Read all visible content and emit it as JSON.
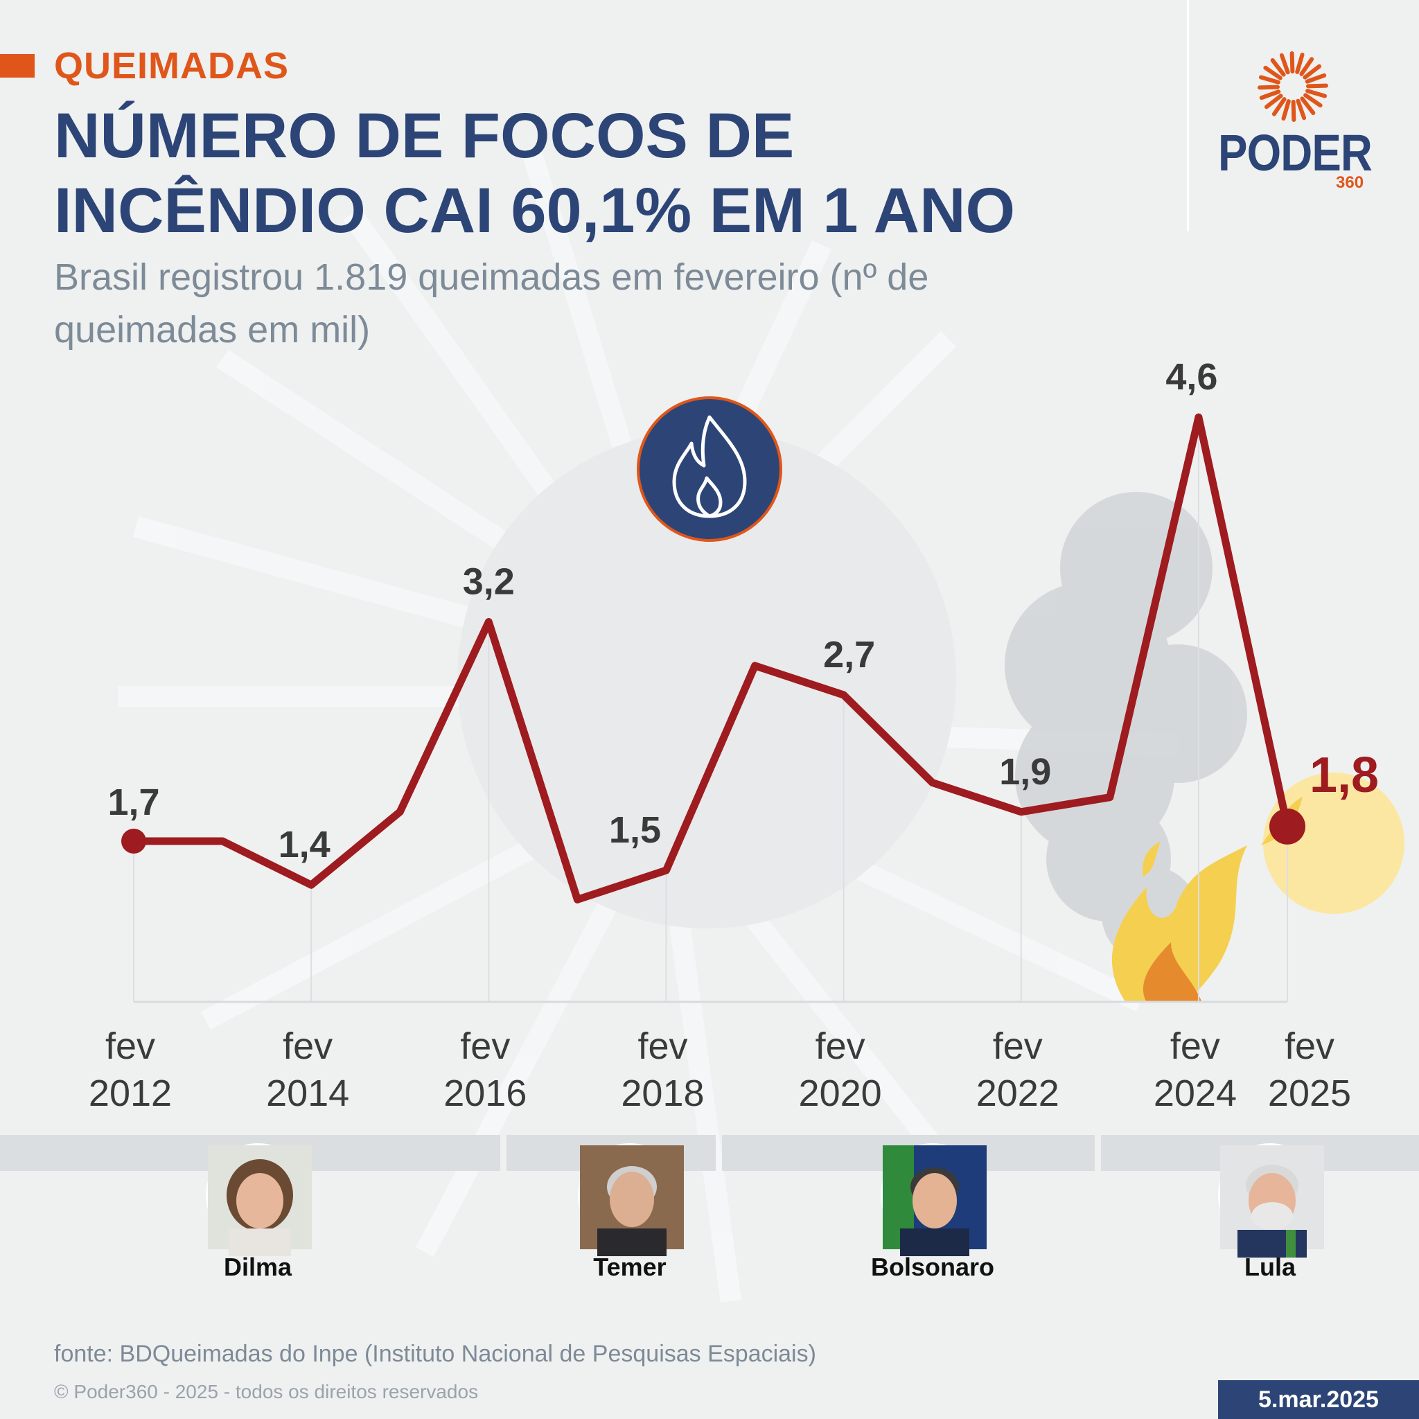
{
  "header": {
    "tag": "QUEIMADAS",
    "title": "NÚMERO DE FOCOS DE INCÊNDIO CAI 60,1% EM 1 ANO",
    "subtitle": "Brasil registrou 1.819 queimadas em fevereiro (nº de queimadas em mil)"
  },
  "brand": {
    "name": "PODER",
    "sub": "360",
    "accent": "#e0561a",
    "primary": "#2c4576"
  },
  "chart_data": {
    "type": "line",
    "title": "NÚMERO DE FOCOS DE INCÊNDIO CAI 60,1% EM 1 ANO",
    "subtitle": "Brasil registrou 1.819 queimadas em fevereiro (nº de queimadas em mil)",
    "x": [
      2012,
      2013,
      2014,
      2015,
      2016,
      2017,
      2018,
      2019,
      2020,
      2021,
      2022,
      2023,
      2024,
      2025
    ],
    "values": [
      1.7,
      1.7,
      1.4,
      1.9,
      3.2,
      1.3,
      1.5,
      2.9,
      2.7,
      2.1,
      1.9,
      2.0,
      4.6,
      1.8
    ],
    "data_labels": [
      {
        "x": 2012,
        "text": "1,7"
      },
      {
        "x": 2014,
        "text": "1,4"
      },
      {
        "x": 2016,
        "text": "3,2"
      },
      {
        "x": 2018,
        "text": "1,5"
      },
      {
        "x": 2020,
        "text": "2,7"
      },
      {
        "x": 2022,
        "text": "1,9"
      },
      {
        "x": 2024,
        "text": "4,6"
      },
      {
        "x": 2025,
        "text": "1,8"
      }
    ],
    "ticks": [
      {
        "x": 2012,
        "month": "fev",
        "year": "2012"
      },
      {
        "x": 2014,
        "month": "fev",
        "year": "2014"
      },
      {
        "x": 2016,
        "month": "fev",
        "year": "2016"
      },
      {
        "x": 2018,
        "month": "fev",
        "year": "2018"
      },
      {
        "x": 2020,
        "month": "fev",
        "year": "2020"
      },
      {
        "x": 2022,
        "month": "fev",
        "year": "2022"
      },
      {
        "x": 2024,
        "month": "fev",
        "year": "2024"
      },
      {
        "x": 2025,
        "month": "fev",
        "year": "2025"
      }
    ],
    "ylim": [
      0.6,
      4.8
    ],
    "grid": false,
    "line_color": "#9e1b1f",
    "label_color": "#3a3a3a",
    "highlight_color": "#9e1b1f"
  },
  "presidents": [
    {
      "name": "Dilma"
    },
    {
      "name": "Temer"
    },
    {
      "name": "Bolsonaro"
    },
    {
      "name": "Lula"
    }
  ],
  "footer": {
    "source": "fonte: BDQueimadas do Inpe (Instituto Nacional de Pesquisas Espaciais)",
    "copyright": "© Poder360 - 2025 - todos os direitos reservados",
    "date": "5.mar.2025"
  }
}
